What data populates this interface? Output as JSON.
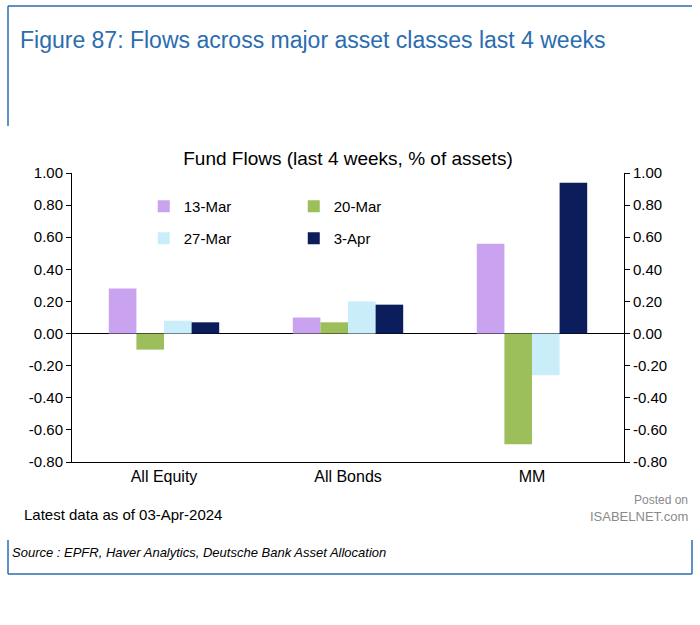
{
  "chart_data": {
    "type": "bar",
    "title": "Figure 87: Flows across major asset classes last 4 weeks",
    "subtitle": "Fund Flows (last 4 weeks, % of assets)",
    "categories": [
      "All Equity",
      "All Bonds",
      "MM"
    ],
    "series": [
      {
        "name": "13-Mar",
        "color": "#c9a3ef",
        "values": [
          0.28,
          0.1,
          0.56
        ]
      },
      {
        "name": "20-Mar",
        "color": "#9cbf5b",
        "values": [
          -0.1,
          0.07,
          -0.69
        ]
      },
      {
        "name": "27-Mar",
        "color": "#c9eef9",
        "values": [
          0.08,
          0.2,
          -0.26
        ]
      },
      {
        "name": "3-Apr",
        "color": "#0b1d5a",
        "values": [
          0.07,
          0.18,
          0.94
        ]
      }
    ],
    "ylim": [
      -0.8,
      1.0
    ],
    "yticks": [
      {
        "value": -0.8,
        "label": "-0.80"
      },
      {
        "value": -0.6,
        "label": "-0.60"
      },
      {
        "value": -0.4,
        "label": "-0.40"
      },
      {
        "value": -0.2,
        "label": "-0.20"
      },
      {
        "value": 0,
        "label": "0.00"
      },
      {
        "value": 0.2,
        "label": "0.20"
      },
      {
        "value": 0.4,
        "label": "0.40"
      },
      {
        "value": 0.6,
        "label": "0.60"
      },
      {
        "value": 0.8,
        "label": "0.80"
      },
      {
        "value": 1.0,
        "label": "1.00"
      }
    ],
    "y2lim": [
      -0.8,
      1.0
    ],
    "y2ticks": [
      {
        "value": -0.8,
        "label": "-0.80"
      },
      {
        "value": -0.6,
        "label": "-0.60"
      },
      {
        "value": -0.4,
        "label": "-0.40"
      },
      {
        "value": -0.2,
        "label": "-0.20"
      },
      {
        "value": 0,
        "label": "0.00"
      },
      {
        "value": 0.2,
        "label": "0.20"
      },
      {
        "value": 0.4,
        "label": "0.40"
      },
      {
        "value": 0.6,
        "label": "0.60"
      },
      {
        "value": 0.8,
        "label": "0.80"
      },
      {
        "value": 1.0,
        "label": "1.00"
      }
    ],
    "grid": false,
    "legend": "top left",
    "annotations": [
      "Latest data as of 03-Apr-2024",
      "Source : EPFR, Haver Analytics, Deutsche Bank Asset Allocation",
      "Posted on",
      "ISABELNET.com"
    ]
  }
}
